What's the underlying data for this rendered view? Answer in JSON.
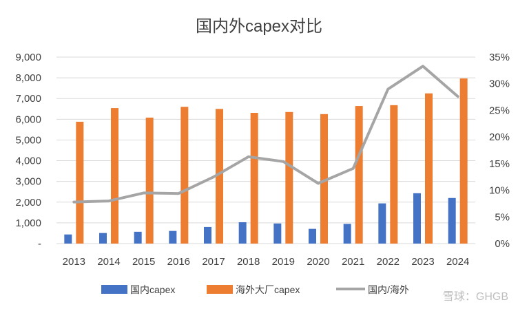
{
  "chart_data": {
    "type": "bar",
    "title": "国内外capex对比",
    "categories": [
      "2013",
      "2014",
      "2015",
      "2016",
      "2017",
      "2018",
      "2019",
      "2020",
      "2021",
      "2022",
      "2023",
      "2024"
    ],
    "series": [
      {
        "name": "国内capex",
        "kind": "bar",
        "axis": "left",
        "color": "#4472c4",
        "values": [
          440,
          510,
          570,
          610,
          800,
          1030,
          970,
          710,
          950,
          1940,
          2430,
          2200
        ]
      },
      {
        "name": "海外大厂capex",
        "kind": "bar",
        "axis": "left",
        "color": "#ed7d31",
        "values": [
          5880,
          6540,
          6080,
          6600,
          6500,
          6310,
          6350,
          6250,
          6640,
          6680,
          7250,
          7970
        ]
      },
      {
        "name": "国内/海外",
        "kind": "line",
        "axis": "right",
        "color": "#a5a5a5",
        "values": [
          0.078,
          0.08,
          0.095,
          0.094,
          0.125,
          0.163,
          0.154,
          0.113,
          0.141,
          0.29,
          0.333,
          0.276
        ]
      }
    ],
    "y_left": {
      "min": 0,
      "max": 9000,
      "step": 1000,
      "tick_labels": [
        "-",
        "1,000",
        "2,000",
        "3,000",
        "4,000",
        "5,000",
        "6,000",
        "7,000",
        "8,000",
        "9,000"
      ]
    },
    "y_right": {
      "min": 0,
      "max": 0.35,
      "step": 0.05,
      "tick_labels": [
        "0%",
        "5%",
        "10%",
        "15%",
        "20%",
        "25%",
        "30%",
        "35%"
      ]
    },
    "grid": true,
    "legend": "bottom"
  },
  "watermark": "雪球：GHGB"
}
